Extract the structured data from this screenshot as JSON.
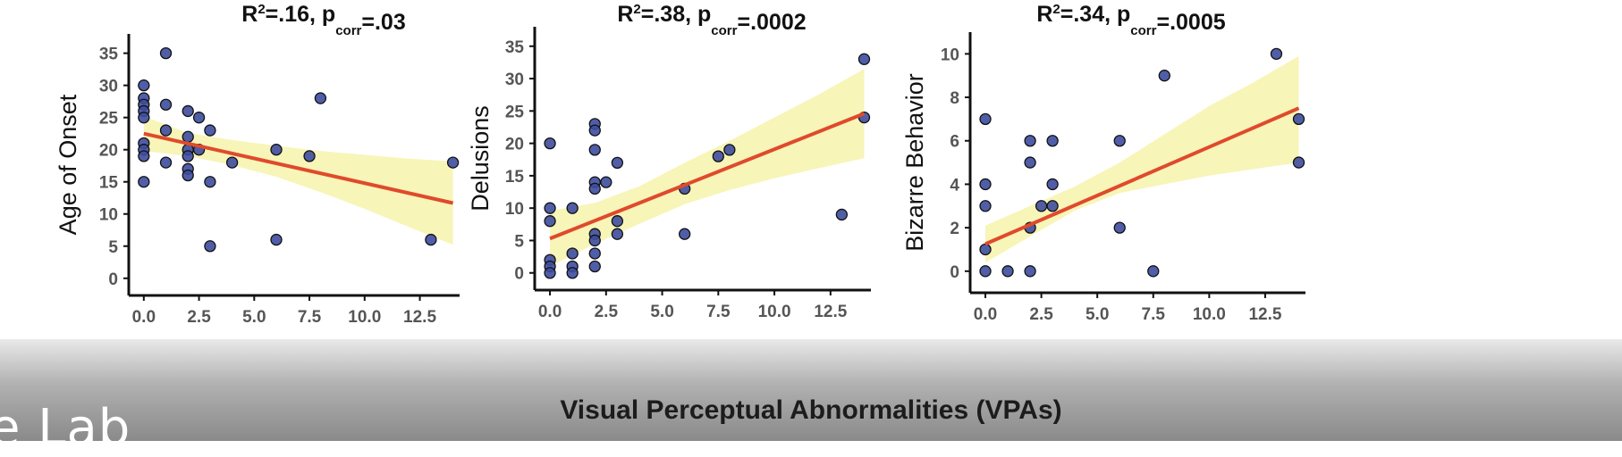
{
  "overlay": {
    "text": "e Lab"
  },
  "xlabel": "Visual Perceptual Abnormalities (VPAs)",
  "chart_data": [
    {
      "type": "scatter",
      "title": {
        "r2": ".16",
        "p": ".03"
      },
      "ylabel": "Age of Onset",
      "xlim": [
        -0.6,
        14.3
      ],
      "ylim": [
        -1,
        38
      ],
      "x_ticks": [
        0,
        2.5,
        5,
        7.5,
        10,
        12.5
      ],
      "x_tick_labels": [
        "0.0",
        "2.5",
        "5.0",
        "7.5",
        "10.0",
        "12.5"
      ],
      "y_ticks": [
        0,
        5,
        10,
        15,
        20,
        25,
        30,
        35
      ],
      "y_tick_labels": [
        "0",
        "5",
        "10",
        "15",
        "20",
        "25",
        "30",
        "35"
      ],
      "points": [
        [
          0,
          30
        ],
        [
          0,
          28
        ],
        [
          0,
          27
        ],
        [
          0,
          26
        ],
        [
          0,
          25
        ],
        [
          0,
          21
        ],
        [
          0,
          20
        ],
        [
          0,
          19
        ],
        [
          0,
          15
        ],
        [
          1,
          35
        ],
        [
          1,
          27
        ],
        [
          1,
          23
        ],
        [
          1,
          18
        ],
        [
          2,
          26
        ],
        [
          2,
          22
        ],
        [
          2,
          20
        ],
        [
          2,
          19
        ],
        [
          2,
          17
        ],
        [
          2,
          16
        ],
        [
          2.5,
          25
        ],
        [
          2.5,
          20
        ],
        [
          3,
          23
        ],
        [
          3,
          15
        ],
        [
          3,
          5
        ],
        [
          4,
          18
        ],
        [
          6,
          20
        ],
        [
          6,
          6
        ],
        [
          7.5,
          19
        ],
        [
          8,
          28
        ],
        [
          13,
          6
        ],
        [
          14,
          18
        ]
      ],
      "fit": {
        "x": [
          0,
          14
        ],
        "y": [
          22.5,
          11.7
        ]
      },
      "band": {
        "x": [
          0,
          2,
          4,
          6,
          8,
          10,
          12,
          14
        ],
        "lower": [
          19.8,
          19.0,
          17.6,
          15.8,
          13.4,
          10.8,
          8.0,
          5.2
        ],
        "upper": [
          25.2,
          22.6,
          21.5,
          20.6,
          19.8,
          19.2,
          18.6,
          18.2
        ]
      }
    },
    {
      "type": "scatter",
      "title": {
        "r2": ".38",
        "p": ".0002"
      },
      "ylabel": "Delusions",
      "xlim": [
        -0.6,
        14.3
      ],
      "ylim": [
        -1,
        38
      ],
      "x_ticks": [
        0,
        2.5,
        5,
        7.5,
        10,
        12.5
      ],
      "x_tick_labels": [
        "0.0",
        "2.5",
        "5.0",
        "7.5",
        "10.0",
        "12.5"
      ],
      "y_ticks": [
        0,
        5,
        10,
        15,
        20,
        25,
        30,
        35
      ],
      "y_tick_labels": [
        "0",
        "5",
        "10",
        "15",
        "20",
        "25",
        "30",
        "35"
      ],
      "points": [
        [
          0,
          20
        ],
        [
          0,
          10
        ],
        [
          0,
          8
        ],
        [
          0,
          2
        ],
        [
          0,
          1
        ],
        [
          0,
          0
        ],
        [
          1,
          10
        ],
        [
          1,
          3
        ],
        [
          1,
          1
        ],
        [
          1,
          0
        ],
        [
          2,
          23
        ],
        [
          2,
          22
        ],
        [
          2,
          19
        ],
        [
          2,
          14
        ],
        [
          2,
          13
        ],
        [
          2,
          6
        ],
        [
          2,
          5
        ],
        [
          2,
          3
        ],
        [
          2,
          1
        ],
        [
          2.5,
          14
        ],
        [
          3,
          17
        ],
        [
          3,
          8
        ],
        [
          3,
          6
        ],
        [
          6,
          13
        ],
        [
          6,
          6
        ],
        [
          7.5,
          18
        ],
        [
          8,
          19
        ],
        [
          13,
          9
        ],
        [
          14,
          33
        ],
        [
          14,
          24
        ]
      ],
      "fit": {
        "x": [
          0,
          14
        ],
        "y": [
          5.3,
          24.6
        ]
      },
      "band": {
        "x": [
          0,
          2,
          4,
          6,
          8,
          10,
          12,
          14
        ],
        "lower": [
          1.0,
          4.5,
          7.6,
          10.6,
          12.8,
          14.6,
          16.2,
          17.7
        ],
        "upper": [
          9.6,
          10.8,
          13.4,
          17.0,
          20.4,
          24.0,
          27.6,
          31.5
        ]
      }
    },
    {
      "type": "scatter",
      "title": {
        "r2": ".34",
        "p": ".0005"
      },
      "ylabel": "Bizarre Behavior",
      "xlim": [
        -0.6,
        14.3
      ],
      "ylim": [
        -0.5,
        11
      ],
      "x_ticks": [
        0,
        2.5,
        5,
        7.5,
        10,
        12.5
      ],
      "x_tick_labels": [
        "0.0",
        "2.5",
        "5.0",
        "7.5",
        "10.0",
        "12.5"
      ],
      "y_ticks": [
        0,
        2,
        4,
        6,
        8,
        10
      ],
      "y_tick_labels": [
        "0",
        "2",
        "4",
        "6",
        "8",
        "10"
      ],
      "points": [
        [
          0,
          7
        ],
        [
          0,
          4
        ],
        [
          0,
          3
        ],
        [
          0,
          1
        ],
        [
          0,
          0
        ],
        [
          1,
          0
        ],
        [
          2,
          6
        ],
        [
          2,
          5
        ],
        [
          2,
          2
        ],
        [
          2,
          0
        ],
        [
          2.5,
          3
        ],
        [
          3,
          6
        ],
        [
          3,
          4
        ],
        [
          3,
          3
        ],
        [
          6,
          6
        ],
        [
          6,
          2
        ],
        [
          7.5,
          0
        ],
        [
          8,
          9
        ],
        [
          13,
          10
        ],
        [
          14,
          7
        ],
        [
          14,
          5
        ]
      ],
      "fit": {
        "x": [
          0,
          14
        ],
        "y": [
          1.25,
          7.5
        ]
      },
      "band": {
        "x": [
          0,
          2,
          4,
          6,
          8,
          10,
          12,
          14
        ],
        "lower": [
          0.4,
          1.6,
          2.8,
          3.6,
          4.0,
          4.4,
          4.7,
          5.0
        ],
        "upper": [
          2.1,
          3.0,
          3.9,
          5.0,
          6.3,
          7.6,
          8.7,
          9.9
        ]
      }
    }
  ]
}
